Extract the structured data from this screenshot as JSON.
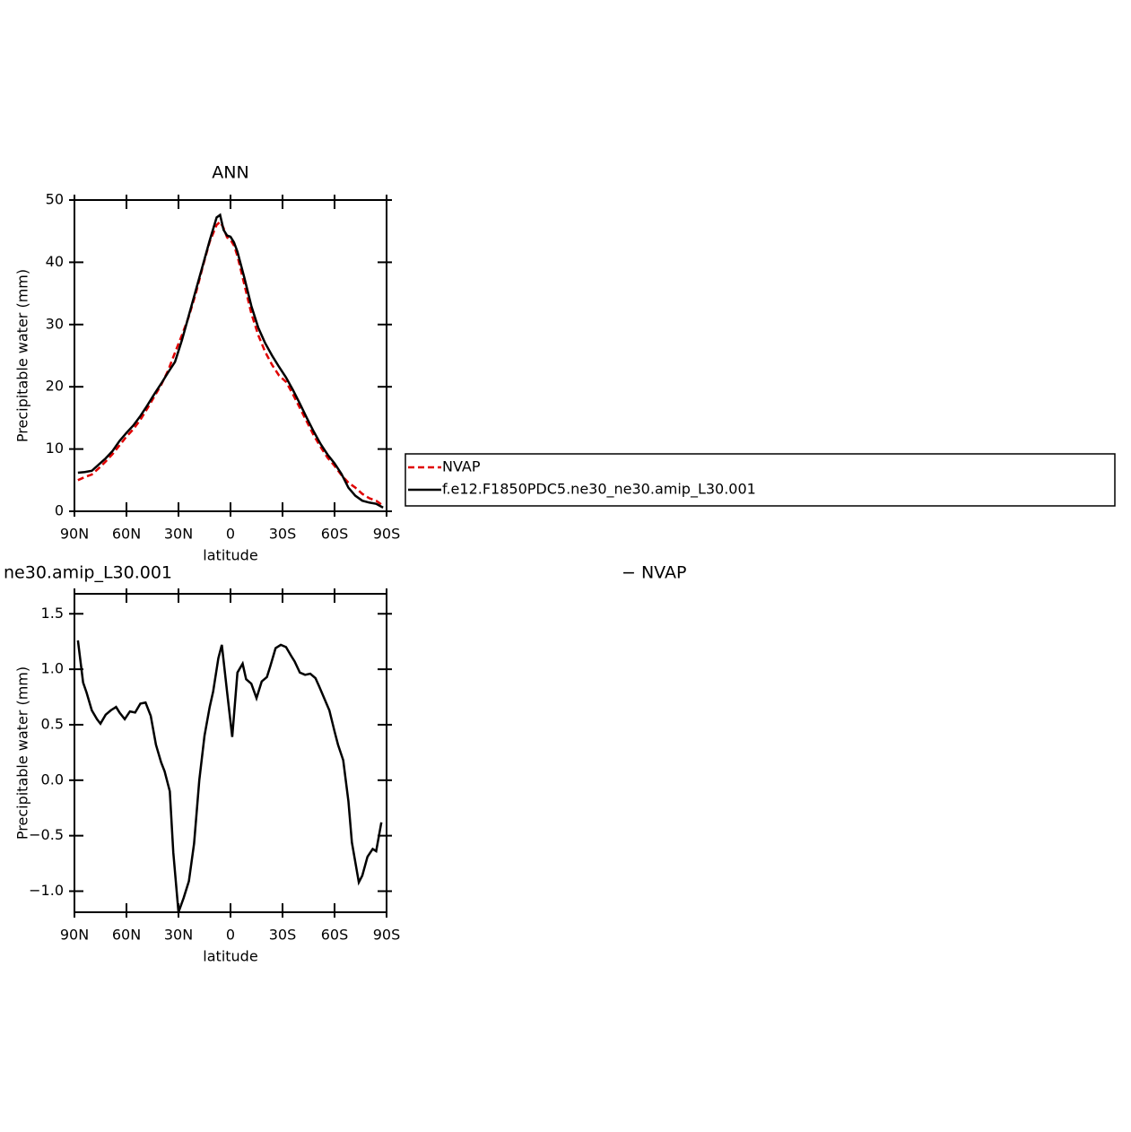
{
  "chart_data": [
    {
      "type": "line",
      "title": "ANN",
      "xlabel": "latitude",
      "ylabel": "Precipitable water (mm)",
      "x": [
        88,
        84,
        80,
        76,
        72,
        68,
        64,
        60,
        56,
        52,
        48,
        44,
        40,
        36,
        32,
        28,
        24,
        20,
        16,
        12,
        8,
        6,
        4,
        2,
        0,
        -2,
        -4,
        -8,
        -12,
        -16,
        -20,
        -24,
        -28,
        -32,
        -36,
        -40,
        -44,
        -48,
        -52,
        -56,
        -60,
        -64,
        -68,
        -72,
        -76,
        -80,
        -84,
        -88
      ],
      "series": [
        {
          "name": "NVAP",
          "color": "#e00000",
          "linestyle": "dashed",
          "values": [
            5.0,
            5.5,
            5.9,
            6.9,
            8.0,
            9.2,
            10.6,
            12.0,
            13.2,
            14.7,
            16.5,
            18.4,
            20.3,
            22.6,
            25.5,
            28.3,
            31.3,
            35.0,
            39.3,
            43.3,
            46.0,
            46.5,
            45.5,
            44.0,
            43.6,
            42.7,
            41.0,
            36.4,
            31.8,
            28.3,
            25.6,
            23.5,
            21.8,
            20.8,
            18.8,
            16.6,
            14.4,
            12.2,
            10.3,
            8.6,
            7.3,
            5.8,
            4.6,
            3.8,
            2.8,
            2.1,
            1.7,
            0.9
          ]
        },
        {
          "name": "f.e12.F1850PDC5.ne30_ne30.amip_L30.001",
          "color": "#000000",
          "linestyle": "solid",
          "values": [
            6.2,
            6.3,
            6.5,
            7.5,
            8.5,
            9.7,
            11.3,
            12.6,
            13.8,
            15.3,
            17.0,
            18.8,
            20.5,
            22.3,
            24.0,
            27.5,
            31.5,
            35.5,
            39.5,
            43.5,
            47.2,
            47.6,
            45.2,
            44.3,
            44.1,
            43.2,
            41.7,
            37.5,
            33.0,
            29.5,
            27.0,
            25.0,
            23.2,
            21.5,
            19.5,
            17.3,
            15.0,
            12.8,
            10.8,
            9.1,
            7.7,
            6.0,
            3.8,
            2.5,
            1.7,
            1.4,
            1.2,
            0.6
          ]
        }
      ],
      "xlim": [
        90,
        -90
      ],
      "ylim": [
        0,
        50
      ],
      "xticks": [
        {
          "value": 90,
          "label": "90N"
        },
        {
          "value": 60,
          "label": "60N"
        },
        {
          "value": 30,
          "label": "30N"
        },
        0,
        {
          "value": -30,
          "label": "30S"
        },
        {
          "value": -60,
          "label": "60S"
        },
        {
          "value": -90,
          "label": "90S"
        }
      ],
      "yticks": [
        0,
        10,
        20,
        30,
        40,
        50
      ]
    },
    {
      "type": "line",
      "title_left": "ne30.amip_L30.001",
      "title_right": "− NVAP",
      "xlabel": "latitude",
      "ylabel": "Precipitable water (mm)",
      "x": [
        88,
        85,
        83,
        80,
        77,
        75,
        72,
        69,
        66,
        64,
        61,
        58,
        55,
        52,
        49,
        46,
        43,
        40,
        38,
        35,
        33,
        30,
        27,
        24,
        21,
        18,
        15,
        12,
        10,
        7,
        5,
        2,
        -1,
        -4,
        -7,
        -9,
        -12,
        -15,
        -18,
        -21,
        -23,
        -26,
        -29,
        -32,
        -35,
        -37,
        -40,
        -43,
        -46,
        -49,
        -51,
        -54,
        -57,
        -60,
        -62,
        -65,
        -68,
        -70,
        -74,
        -76,
        -79,
        -82,
        -84,
        -87
      ],
      "series": [
        {
          "color": "#000000",
          "linestyle": "solid",
          "values": [
            1.26,
            0.88,
            0.79,
            0.63,
            0.55,
            0.51,
            0.59,
            0.63,
            0.66,
            0.61,
            0.55,
            0.62,
            0.61,
            0.69,
            0.7,
            0.58,
            0.32,
            0.16,
            0.08,
            -0.1,
            -0.65,
            -1.19,
            -1.06,
            -0.91,
            -0.57,
            0.0,
            0.4,
            0.66,
            0.8,
            1.1,
            1.22,
            0.8,
            0.39,
            0.97,
            1.05,
            0.91,
            0.87,
            0.74,
            0.89,
            0.93,
            1.03,
            1.19,
            1.22,
            1.2,
            1.12,
            1.07,
            0.97,
            0.95,
            0.96,
            0.92,
            0.85,
            0.74,
            0.63,
            0.44,
            0.32,
            0.18,
            -0.19,
            -0.56,
            -0.92,
            -0.86,
            -0.69,
            -0.62,
            -0.64,
            -0.38
          ]
        }
      ],
      "xlim": [
        90,
        -90
      ],
      "ylim": [
        -1.19,
        1.68
      ],
      "xticks": [
        {
          "value": 90,
          "label": "90N"
        },
        {
          "value": 60,
          "label": "60N"
        },
        {
          "value": 30,
          "label": "30N"
        },
        0,
        {
          "value": -30,
          "label": "30S"
        },
        {
          "value": -60,
          "label": "60S"
        },
        {
          "value": -90,
          "label": "90S"
        }
      ],
      "yticks": [
        {
          "value": -1,
          "label": "−1.0"
        },
        {
          "value": -0.5,
          "label": "−0.5"
        },
        {
          "value": 0,
          "label": "0.0"
        },
        0.5,
        {
          "value": 1,
          "label": "1.0"
        },
        1.5
      ]
    }
  ]
}
